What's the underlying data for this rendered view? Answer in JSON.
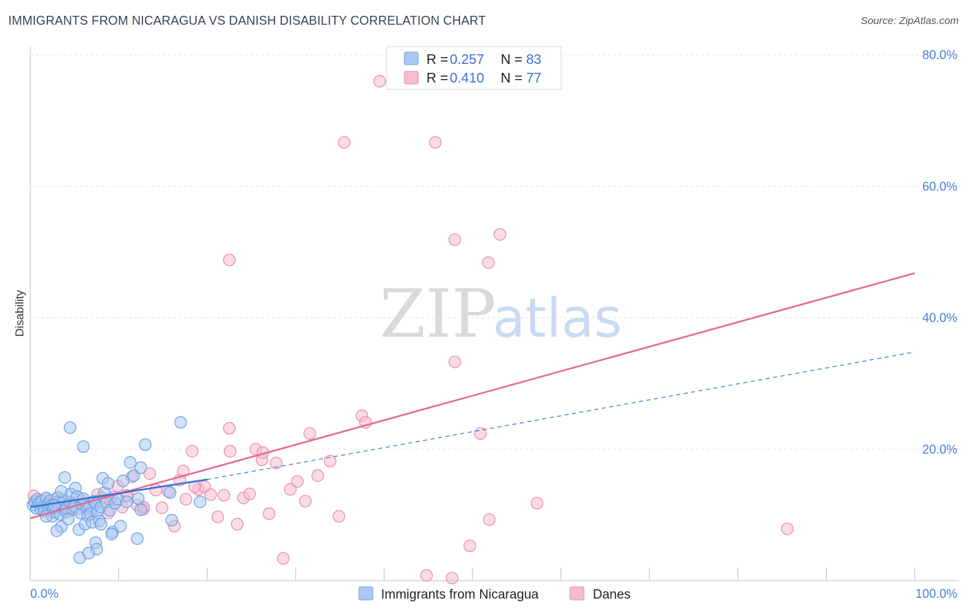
{
  "header": {
    "title": "IMMIGRANTS FROM NICARAGUA VS DANISH DISABILITY CORRELATION CHART",
    "source": "Source: ZipAtlas.com"
  },
  "watermark": {
    "zip": "ZIP",
    "atlas": "atlas"
  },
  "colors": {
    "blue_fill": "#a9c8f2",
    "blue_stroke": "#6a9ee0",
    "blue_line": "#3a72d0",
    "pink_fill": "#f6bdd0",
    "pink_stroke": "#e88aaa",
    "pink_line": "#e46a93",
    "grid": "#e3e3e3",
    "axis": "#bfbfbf"
  },
  "legend": {
    "series": [
      {
        "r_label": "R =",
        "r_value": "0.257",
        "n_label": "N =",
        "n_value": "83"
      },
      {
        "r_label": "R =",
        "r_value": "0.410",
        "n_label": "N =",
        "n_value": "77"
      }
    ]
  },
  "chart_data": {
    "type": "scatter",
    "title": "IMMIGRANTS FROM NICARAGUA VS DANISH DISABILITY CORRELATION CHART",
    "xlabel": "",
    "ylabel": "Disability",
    "xlim": [
      0,
      100
    ],
    "ylim": [
      0,
      80
    ],
    "x_tick_labels": [
      "0.0%",
      "100.0%"
    ],
    "y_ticks": [
      20,
      40,
      60,
      80
    ],
    "y_tick_labels": [
      "20.0%",
      "40.0%",
      "60.0%",
      "80.0%"
    ],
    "grid": true,
    "legend_position": "top-center",
    "series": [
      {
        "name": "Immigrants from Nicaragua",
        "r": 0.257,
        "n": 83,
        "trend_solid": [
          [
            0,
            11.2
          ],
          [
            20,
            15.4
          ]
        ],
        "trend_dashed": [
          [
            20,
            15.4
          ],
          [
            100,
            34.8
          ]
        ],
        "points": [
          [
            0.3,
            11.5
          ],
          [
            0.5,
            12.0
          ],
          [
            0.7,
            11.0
          ],
          [
            0.8,
            12.4
          ],
          [
            1.0,
            11.8
          ],
          [
            1.2,
            10.9
          ],
          [
            1.3,
            12.1
          ],
          [
            1.5,
            11.3
          ],
          [
            1.6,
            10.6
          ],
          [
            1.8,
            12.6
          ],
          [
            2.0,
            11.6
          ],
          [
            2.1,
            10.8
          ],
          [
            2.3,
            12.2
          ],
          [
            2.4,
            11.4
          ],
          [
            2.5,
            9.8
          ],
          [
            2.6,
            11.1
          ],
          [
            2.8,
            10.4
          ],
          [
            3.0,
            11.9
          ],
          [
            3.1,
            12.7
          ],
          [
            3.3,
            11.2
          ],
          [
            3.4,
            10.1
          ],
          [
            3.5,
            8.2
          ],
          [
            3.6,
            11.7
          ],
          [
            3.8,
            12.3
          ],
          [
            4.0,
            10.6
          ],
          [
            4.1,
            11.0
          ],
          [
            4.3,
            9.4
          ],
          [
            4.5,
            12.0
          ],
          [
            4.6,
            13.2
          ],
          [
            4.8,
            10.9
          ],
          [
            5.0,
            11.3
          ],
          [
            5.1,
            14.1
          ],
          [
            5.3,
            12.8
          ],
          [
            5.5,
            7.8
          ],
          [
            5.7,
            10.3
          ],
          [
            5.9,
            11.6
          ],
          [
            6.0,
            12.5
          ],
          [
            6.2,
            8.6
          ],
          [
            6.4,
            11.0
          ],
          [
            6.5,
            9.9
          ],
          [
            6.7,
            11.4
          ],
          [
            6.8,
            10.2
          ],
          [
            7.0,
            8.9
          ],
          [
            7.2,
            12.1
          ],
          [
            7.4,
            11.7
          ],
          [
            7.6,
            10.5
          ],
          [
            7.8,
            9.1
          ],
          [
            8.0,
            11.2
          ],
          [
            8.2,
            15.6
          ],
          [
            8.4,
            13.4
          ],
          [
            8.6,
            12.0
          ],
          [
            8.8,
            14.8
          ],
          [
            9.0,
            10.7
          ],
          [
            9.3,
            7.4
          ],
          [
            9.6,
            11.8
          ],
          [
            9.9,
            12.4
          ],
          [
            10.2,
            8.3
          ],
          [
            10.5,
            15.2
          ],
          [
            10.9,
            12.0
          ],
          [
            11.3,
            18.0
          ],
          [
            11.7,
            16.0
          ],
          [
            12.1,
            6.4
          ],
          [
            12.5,
            10.8
          ],
          [
            13.0,
            20.7
          ],
          [
            6.0,
            20.4
          ],
          [
            4.5,
            23.3
          ],
          [
            3.9,
            15.7
          ],
          [
            5.6,
            3.5
          ],
          [
            7.4,
            5.8
          ],
          [
            7.5,
            4.8
          ],
          [
            9.2,
            7.1
          ],
          [
            16.0,
            9.2
          ],
          [
            19.2,
            12.0
          ],
          [
            17.0,
            24.1
          ],
          [
            12.2,
            12.5
          ],
          [
            8.0,
            8.6
          ],
          [
            6.6,
            4.2
          ],
          [
            3.0,
            7.6
          ],
          [
            1.8,
            9.8
          ],
          [
            2.7,
            11.5
          ],
          [
            3.5,
            13.6
          ],
          [
            15.8,
            13.4
          ],
          [
            12.5,
            17.2
          ]
        ]
      },
      {
        "name": "Danes",
        "r": 0.41,
        "n": 77,
        "trend_solid": [
          [
            0,
            9.5
          ],
          [
            100,
            46.8
          ]
        ],
        "points": [
          [
            0.4,
            12.9
          ],
          [
            0.9,
            12.1
          ],
          [
            1.4,
            11.3
          ],
          [
            1.9,
            12.4
          ],
          [
            2.4,
            11.8
          ],
          [
            3.1,
            12.6
          ],
          [
            3.6,
            11.0
          ],
          [
            4.2,
            10.4
          ],
          [
            4.7,
            11.7
          ],
          [
            5.3,
            10.9
          ],
          [
            5.9,
            12.2
          ],
          [
            6.4,
            11.4
          ],
          [
            7.0,
            10.8
          ],
          [
            7.6,
            13.1
          ],
          [
            8.2,
            11.9
          ],
          [
            8.8,
            10.3
          ],
          [
            9.3,
            12.7
          ],
          [
            9.9,
            14.4
          ],
          [
            10.4,
            11.2
          ],
          [
            11.0,
            12.9
          ],
          [
            11.5,
            15.8
          ],
          [
            12.1,
            11.5
          ],
          [
            12.8,
            10.9
          ],
          [
            13.5,
            16.3
          ],
          [
            14.2,
            13.8
          ],
          [
            14.9,
            11.1
          ],
          [
            15.6,
            13.6
          ],
          [
            16.3,
            8.3
          ],
          [
            16.9,
            15.3
          ],
          [
            17.6,
            12.4
          ],
          [
            18.3,
            19.7
          ],
          [
            19.0,
            13.9
          ],
          [
            19.7,
            14.3
          ],
          [
            20.4,
            13.1
          ],
          [
            21.2,
            9.7
          ],
          [
            21.9,
            13.0
          ],
          [
            22.6,
            19.7
          ],
          [
            23.4,
            8.6
          ],
          [
            24.1,
            12.6
          ],
          [
            24.8,
            13.2
          ],
          [
            25.5,
            20.0
          ],
          [
            26.2,
            18.4
          ],
          [
            27.0,
            10.2
          ],
          [
            27.8,
            17.9
          ],
          [
            28.6,
            3.4
          ],
          [
            29.4,
            13.9
          ],
          [
            30.2,
            15.1
          ],
          [
            31.1,
            12.1
          ],
          [
            31.6,
            22.4
          ],
          [
            32.5,
            16.0
          ],
          [
            33.9,
            18.2
          ],
          [
            34.9,
            9.8
          ],
          [
            37.5,
            25.1
          ],
          [
            37.9,
            24.1
          ],
          [
            39.5,
            76.0
          ],
          [
            44.8,
            0.8
          ],
          [
            47.7,
            0.4
          ],
          [
            49.7,
            5.3
          ],
          [
            50.9,
            22.4
          ],
          [
            51.9,
            9.3
          ],
          [
            22.5,
            48.8
          ],
          [
            35.5,
            66.7
          ],
          [
            45.8,
            66.7
          ],
          [
            48.0,
            33.3
          ],
          [
            48.0,
            51.9
          ],
          [
            53.1,
            52.7
          ],
          [
            51.8,
            48.4
          ],
          [
            57.3,
            11.8
          ],
          [
            85.6,
            7.9
          ],
          [
            22.5,
            23.2
          ],
          [
            17.3,
            16.7
          ],
          [
            18.6,
            14.3
          ],
          [
            9.0,
            12.2
          ],
          [
            12.8,
            11.2
          ],
          [
            26.3,
            19.5
          ],
          [
            10.9,
            13.0
          ],
          [
            8.1,
            12.6
          ]
        ]
      }
    ]
  }
}
